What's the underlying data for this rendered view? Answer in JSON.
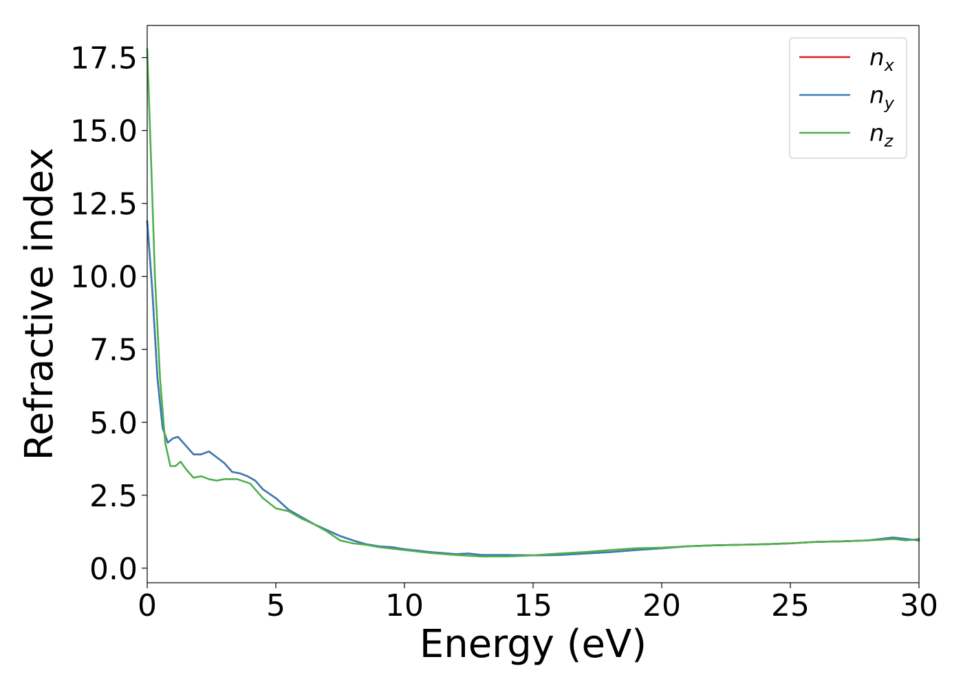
{
  "chart_data": {
    "type": "line",
    "title": "",
    "xlabel": "Energy (eV)",
    "ylabel": "Refractive index",
    "xlim": [
      0,
      30
    ],
    "ylim": [
      -0.5,
      18.6
    ],
    "xticks": [
      0,
      5,
      10,
      15,
      20,
      25,
      30
    ],
    "xtick_labels": [
      "0",
      "5",
      "10",
      "15",
      "20",
      "25",
      "30"
    ],
    "yticks": [
      0,
      2.5,
      5,
      7.5,
      10,
      12.5,
      15,
      17.5
    ],
    "ytick_labels": [
      "0.0",
      "2.5",
      "5.0",
      "7.5",
      "10.0",
      "12.5",
      "15.0",
      "17.5"
    ],
    "grid": false,
    "legend_position": "top-right",
    "series": [
      {
        "name": "n_x",
        "label_base": "n",
        "label_sub": "x",
        "color": "#e41a1c",
        "x": [
          0,
          0.2,
          0.4,
          0.6,
          0.8,
          1.0,
          1.2,
          1.5,
          1.8,
          2.1,
          2.4,
          2.7,
          3.0,
          3.3,
          3.6,
          3.9,
          4.2,
          4.5,
          5.0,
          5.5,
          6.0,
          6.5,
          7.0,
          7.5,
          8.0,
          8.5,
          9.0,
          9.5,
          10,
          11,
          12,
          12.5,
          13,
          14,
          15,
          16,
          17,
          18,
          19,
          20,
          21,
          22,
          23,
          24,
          25,
          26,
          27,
          28,
          29,
          29.5,
          30
        ],
        "y": [
          11.9,
          9.5,
          6.5,
          4.8,
          4.3,
          4.45,
          4.5,
          4.2,
          3.9,
          3.9,
          4.0,
          3.8,
          3.6,
          3.3,
          3.25,
          3.15,
          3.0,
          2.7,
          2.4,
          2.0,
          1.75,
          1.5,
          1.3,
          1.1,
          0.95,
          0.82,
          0.75,
          0.72,
          0.65,
          0.55,
          0.48,
          0.5,
          0.45,
          0.45,
          0.44,
          0.45,
          0.5,
          0.55,
          0.62,
          0.68,
          0.75,
          0.78,
          0.8,
          0.82,
          0.85,
          0.9,
          0.92,
          0.95,
          1.05,
          1.0,
          0.95
        ]
      },
      {
        "name": "n_y",
        "label_base": "n",
        "label_sub": "y",
        "color": "#377eb8",
        "x": [
          0,
          0.2,
          0.4,
          0.6,
          0.8,
          1.0,
          1.2,
          1.5,
          1.8,
          2.1,
          2.4,
          2.7,
          3.0,
          3.3,
          3.6,
          3.9,
          4.2,
          4.5,
          5.0,
          5.5,
          6.0,
          6.5,
          7.0,
          7.5,
          8.0,
          8.5,
          9.0,
          9.5,
          10,
          11,
          12,
          12.5,
          13,
          14,
          15,
          16,
          17,
          18,
          19,
          20,
          21,
          22,
          23,
          24,
          25,
          26,
          27,
          28,
          29,
          29.5,
          30
        ],
        "y": [
          11.9,
          9.5,
          6.5,
          4.8,
          4.3,
          4.45,
          4.5,
          4.2,
          3.9,
          3.9,
          4.0,
          3.8,
          3.6,
          3.3,
          3.25,
          3.15,
          3.0,
          2.7,
          2.4,
          2.0,
          1.75,
          1.5,
          1.3,
          1.1,
          0.95,
          0.82,
          0.75,
          0.72,
          0.65,
          0.55,
          0.48,
          0.5,
          0.45,
          0.45,
          0.44,
          0.45,
          0.5,
          0.55,
          0.62,
          0.68,
          0.75,
          0.78,
          0.8,
          0.82,
          0.85,
          0.9,
          0.92,
          0.95,
          1.05,
          1.0,
          0.95
        ]
      },
      {
        "name": "n_z",
        "label_base": "n",
        "label_sub": "z",
        "color": "#4daf4a",
        "x": [
          0,
          0.15,
          0.3,
          0.5,
          0.7,
          0.9,
          1.1,
          1.3,
          1.5,
          1.8,
          2.1,
          2.4,
          2.7,
          3.0,
          3.5,
          4.0,
          4.5,
          5.0,
          5.5,
          6.0,
          6.5,
          7.0,
          7.5,
          8.0,
          8.5,
          9.0,
          10,
          11,
          12,
          13,
          14,
          15,
          16,
          17,
          18,
          19,
          20,
          21,
          22,
          23,
          24,
          25,
          26,
          27,
          28,
          29,
          29.5,
          30
        ],
        "y": [
          17.8,
          14.0,
          10.0,
          6.5,
          4.3,
          3.5,
          3.5,
          3.65,
          3.4,
          3.1,
          3.15,
          3.05,
          3.0,
          3.05,
          3.05,
          2.9,
          2.4,
          2.05,
          1.95,
          1.7,
          1.5,
          1.25,
          0.95,
          0.85,
          0.8,
          0.72,
          0.62,
          0.52,
          0.45,
          0.4,
          0.4,
          0.44,
          0.5,
          0.55,
          0.62,
          0.68,
          0.7,
          0.75,
          0.78,
          0.8,
          0.82,
          0.85,
          0.9,
          0.92,
          0.95,
          1.0,
          0.95,
          1.0
        ]
      }
    ]
  }
}
